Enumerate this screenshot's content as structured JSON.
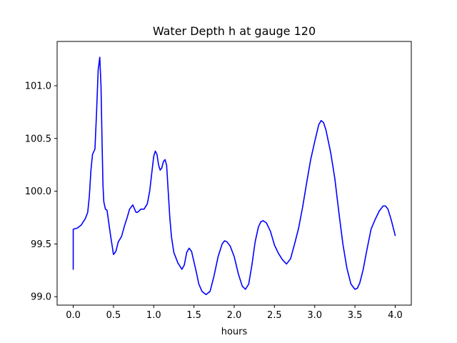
{
  "chart_data": {
    "type": "line",
    "title": "Water Depth h at gauge 120",
    "xlabel": "hours",
    "ylabel": "",
    "xlim": [
      -0.2,
      4.2
    ],
    "ylim": [
      98.92,
      101.42
    ],
    "xticks": [
      0.0,
      0.5,
      1.0,
      1.5,
      2.0,
      2.5,
      3.0,
      3.5,
      4.0
    ],
    "xtick_labels": [
      "0.0",
      "0.5",
      "1.0",
      "1.5",
      "2.0",
      "2.5",
      "3.0",
      "3.5",
      "4.0"
    ],
    "yticks": [
      99.0,
      99.5,
      100.0,
      100.5,
      101.0
    ],
    "ytick_labels": [
      "99.0",
      "99.5",
      "100.0",
      "100.5",
      "101.0"
    ],
    "grid": false,
    "series": [
      {
        "color": "#0000ff",
        "x": [
          0.0,
          0.0,
          0.05,
          0.1,
          0.15,
          0.18,
          0.2,
          0.22,
          0.24,
          0.27,
          0.29,
          0.31,
          0.33,
          0.345,
          0.36,
          0.37,
          0.38,
          0.4,
          0.42,
          0.46,
          0.5,
          0.53,
          0.56,
          0.6,
          0.64,
          0.67,
          0.7,
          0.74,
          0.78,
          0.8,
          0.84,
          0.88,
          0.92,
          0.95,
          0.98,
          1.0,
          1.02,
          1.04,
          1.06,
          1.08,
          1.1,
          1.12,
          1.14,
          1.16,
          1.18,
          1.2,
          1.22,
          1.25,
          1.3,
          1.35,
          1.38,
          1.41,
          1.44,
          1.47,
          1.5,
          1.53,
          1.56,
          1.6,
          1.65,
          1.7,
          1.75,
          1.8,
          1.85,
          1.88,
          1.91,
          1.95,
          2.0,
          2.05,
          2.1,
          2.14,
          2.18,
          2.22,
          2.26,
          2.3,
          2.33,
          2.36,
          2.4,
          2.45,
          2.5,
          2.55,
          2.6,
          2.65,
          2.7,
          2.75,
          2.8,
          2.85,
          2.9,
          2.95,
          3.0,
          3.05,
          3.08,
          3.11,
          3.14,
          3.17,
          3.2,
          3.25,
          3.3,
          3.35,
          3.4,
          3.45,
          3.5,
          3.53,
          3.56,
          3.6,
          3.65,
          3.7,
          3.75,
          3.8,
          3.85,
          3.88,
          3.91,
          3.95,
          4.0
        ],
        "y": [
          99.26,
          99.64,
          99.65,
          99.68,
          99.74,
          99.8,
          99.95,
          100.2,
          100.35,
          100.4,
          100.75,
          101.15,
          101.27,
          101.0,
          100.4,
          100.05,
          99.9,
          99.83,
          99.82,
          99.6,
          99.4,
          99.43,
          99.52,
          99.57,
          99.68,
          99.75,
          99.83,
          99.87,
          99.8,
          99.8,
          99.83,
          99.83,
          99.88,
          100.0,
          100.2,
          100.33,
          100.38,
          100.35,
          100.25,
          100.2,
          100.22,
          100.28,
          100.3,
          100.25,
          100.0,
          99.75,
          99.57,
          99.42,
          99.32,
          99.26,
          99.3,
          99.42,
          99.46,
          99.43,
          99.33,
          99.23,
          99.12,
          99.05,
          99.02,
          99.05,
          99.2,
          99.38,
          99.5,
          99.53,
          99.52,
          99.48,
          99.38,
          99.22,
          99.1,
          99.07,
          99.12,
          99.3,
          99.52,
          99.66,
          99.71,
          99.72,
          99.7,
          99.62,
          99.49,
          99.41,
          99.35,
          99.31,
          99.36,
          99.5,
          99.65,
          99.85,
          100.08,
          100.3,
          100.47,
          100.63,
          100.67,
          100.65,
          100.58,
          100.47,
          100.36,
          100.12,
          99.8,
          99.5,
          99.27,
          99.12,
          99.07,
          99.08,
          99.13,
          99.25,
          99.45,
          99.64,
          99.73,
          99.81,
          99.86,
          99.86,
          99.83,
          99.73,
          99.58
        ]
      }
    ]
  }
}
